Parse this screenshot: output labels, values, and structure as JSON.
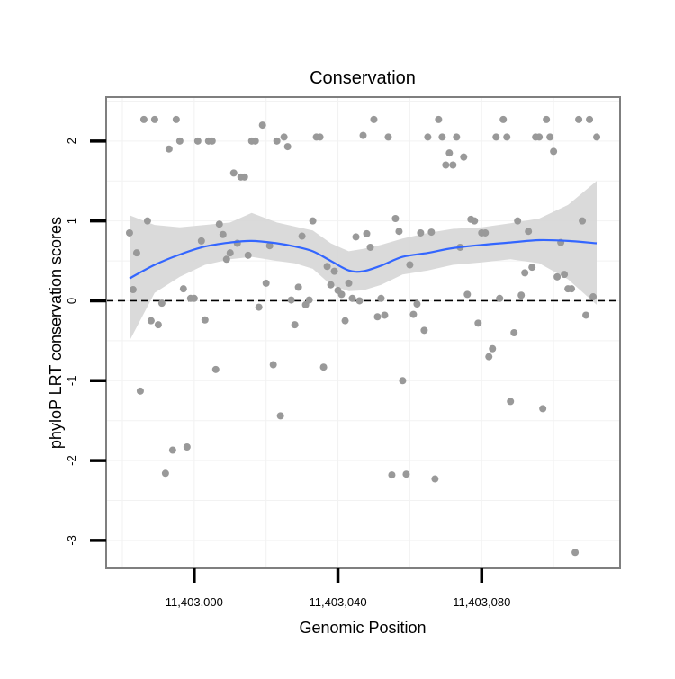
{
  "chart_data": {
    "type": "scatter",
    "title": "Conservation",
    "xlabel": "Genomic Position",
    "ylabel": "phyloP LRT conservation scores",
    "xlim": [
      11402975.5,
      11403118.5
    ],
    "ylim": [
      -3.35,
      2.55
    ],
    "x_ticks": [
      {
        "value": 11403000,
        "label": "11,403,000"
      },
      {
        "value": 11403040,
        "label": "11,403,040"
      },
      {
        "value": 11403080,
        "label": "11,403,080"
      }
    ],
    "y_ticks": [
      {
        "value": 2,
        "label": "2"
      },
      {
        "value": 1,
        "label": "1"
      },
      {
        "value": 0,
        "label": "0"
      },
      {
        "value": -1,
        "label": "-1"
      },
      {
        "value": -2,
        "label": "-2"
      },
      {
        "value": -3,
        "label": "-3"
      }
    ],
    "grid": true,
    "reference_line": {
      "y": 0,
      "style": "dashed",
      "color": "#000000"
    },
    "point_color": "#999999",
    "smooth_color": "#3366ff",
    "ribbon_color": "#d6d6d6",
    "points": [
      {
        "x": 11402982,
        "y": 0.85
      },
      {
        "x": 11402983,
        "y": 0.14
      },
      {
        "x": 11402984,
        "y": 0.6
      },
      {
        "x": 11402985,
        "y": -1.13
      },
      {
        "x": 11402986,
        "y": 2.27
      },
      {
        "x": 11402987,
        "y": 1.0
      },
      {
        "x": 11402988,
        "y": -0.25
      },
      {
        "x": 11402989,
        "y": 2.27
      },
      {
        "x": 11402990,
        "y": -0.3
      },
      {
        "x": 11402991,
        "y": -0.03
      },
      {
        "x": 11402992,
        "y": -2.16
      },
      {
        "x": 11402993,
        "y": 1.9
      },
      {
        "x": 11402994,
        "y": -1.87
      },
      {
        "x": 11402995,
        "y": 2.27
      },
      {
        "x": 11402996,
        "y": 2.0
      },
      {
        "x": 11402997,
        "y": 0.15
      },
      {
        "x": 11402998,
        "y": -1.83
      },
      {
        "x": 11402999,
        "y": 0.03
      },
      {
        "x": 11403000,
        "y": 0.03
      },
      {
        "x": 11403001,
        "y": 2.0
      },
      {
        "x": 11403002,
        "y": 0.75
      },
      {
        "x": 11403003,
        "y": -0.24
      },
      {
        "x": 11403004,
        "y": 2.0
      },
      {
        "x": 11403005,
        "y": 2.0
      },
      {
        "x": 11403006,
        "y": -0.86
      },
      {
        "x": 11403007,
        "y": 0.96
      },
      {
        "x": 11403008,
        "y": 0.83
      },
      {
        "x": 11403009,
        "y": 0.52
      },
      {
        "x": 11403010,
        "y": 0.6
      },
      {
        "x": 11403011,
        "y": 1.6
      },
      {
        "x": 11403012,
        "y": 0.72
      },
      {
        "x": 11403013,
        "y": 1.55
      },
      {
        "x": 11403014,
        "y": 1.55
      },
      {
        "x": 11403015,
        "y": 0.57
      },
      {
        "x": 11403016,
        "y": 2.0
      },
      {
        "x": 11403017,
        "y": 2.0
      },
      {
        "x": 11403018,
        "y": -0.08
      },
      {
        "x": 11403019,
        "y": 2.2
      },
      {
        "x": 11403020,
        "y": 0.22
      },
      {
        "x": 11403021,
        "y": 0.69
      },
      {
        "x": 11403022,
        "y": -0.8
      },
      {
        "x": 11403023,
        "y": 2.0
      },
      {
        "x": 11403024,
        "y": -1.44
      },
      {
        "x": 11403025,
        "y": 2.05
      },
      {
        "x": 11403026,
        "y": 1.93
      },
      {
        "x": 11403027,
        "y": 0.01
      },
      {
        "x": 11403028,
        "y": -0.3
      },
      {
        "x": 11403029,
        "y": 0.17
      },
      {
        "x": 11403030,
        "y": 0.81
      },
      {
        "x": 11403031,
        "y": -0.05
      },
      {
        "x": 11403032,
        "y": 0.01
      },
      {
        "x": 11403033,
        "y": 1.0
      },
      {
        "x": 11403034,
        "y": 2.05
      },
      {
        "x": 11403035,
        "y": 2.05
      },
      {
        "x": 11403036,
        "y": -0.83
      },
      {
        "x": 11403037,
        "y": 0.43
      },
      {
        "x": 11403038,
        "y": 0.2
      },
      {
        "x": 11403039,
        "y": 0.37
      },
      {
        "x": 11403040,
        "y": 0.13
      },
      {
        "x": 11403041,
        "y": 0.08
      },
      {
        "x": 11403042,
        "y": -0.25
      },
      {
        "x": 11403043,
        "y": 0.22
      },
      {
        "x": 11403044,
        "y": 0.03
      },
      {
        "x": 11403045,
        "y": 0.8
      },
      {
        "x": 11403046,
        "y": 0.0
      },
      {
        "x": 11403047,
        "y": 2.07
      },
      {
        "x": 11403048,
        "y": 0.84
      },
      {
        "x": 11403049,
        "y": 0.67
      },
      {
        "x": 11403050,
        "y": 2.27
      },
      {
        "x": 11403051,
        "y": -0.2
      },
      {
        "x": 11403052,
        "y": 0.03
      },
      {
        "x": 11403053,
        "y": -0.18
      },
      {
        "x": 11403054,
        "y": 2.05
      },
      {
        "x": 11403055,
        "y": -2.18
      },
      {
        "x": 11403056,
        "y": 1.03
      },
      {
        "x": 11403057,
        "y": 0.87
      },
      {
        "x": 11403058,
        "y": -1.0
      },
      {
        "x": 11403059,
        "y": -2.17
      },
      {
        "x": 11403060,
        "y": 0.45
      },
      {
        "x": 11403061,
        "y": -0.17
      },
      {
        "x": 11403062,
        "y": -0.04
      },
      {
        "x": 11403063,
        "y": 0.85
      },
      {
        "x": 11403064,
        "y": -0.37
      },
      {
        "x": 11403065,
        "y": 2.05
      },
      {
        "x": 11403066,
        "y": 0.86
      },
      {
        "x": 11403067,
        "y": -2.23
      },
      {
        "x": 11403068,
        "y": 2.27
      },
      {
        "x": 11403069,
        "y": 2.05
      },
      {
        "x": 11403070,
        "y": 1.7
      },
      {
        "x": 11403071,
        "y": 1.85
      },
      {
        "x": 11403072,
        "y": 1.7
      },
      {
        "x": 11403073,
        "y": 2.05
      },
      {
        "x": 11403074,
        "y": 0.67
      },
      {
        "x": 11403075,
        "y": 1.8
      },
      {
        "x": 11403076,
        "y": 0.08
      },
      {
        "x": 11403077,
        "y": 1.02
      },
      {
        "x": 11403078,
        "y": 1.0
      },
      {
        "x": 11403079,
        "y": -0.28
      },
      {
        "x": 11403080,
        "y": 0.85
      },
      {
        "x": 11403081,
        "y": 0.85
      },
      {
        "x": 11403082,
        "y": -0.7
      },
      {
        "x": 11403083,
        "y": -0.6
      },
      {
        "x": 11403084,
        "y": 2.05
      },
      {
        "x": 11403085,
        "y": 0.03
      },
      {
        "x": 11403086,
        "y": 2.27
      },
      {
        "x": 11403087,
        "y": 2.05
      },
      {
        "x": 11403088,
        "y": -1.26
      },
      {
        "x": 11403089,
        "y": -0.4
      },
      {
        "x": 11403090,
        "y": 1.0
      },
      {
        "x": 11403091,
        "y": 0.07
      },
      {
        "x": 11403092,
        "y": 0.35
      },
      {
        "x": 11403093,
        "y": 0.87
      },
      {
        "x": 11403094,
        "y": 0.42
      },
      {
        "x": 11403095,
        "y": 2.05
      },
      {
        "x": 11403096,
        "y": 2.05
      },
      {
        "x": 11403097,
        "y": -1.35
      },
      {
        "x": 11403098,
        "y": 2.27
      },
      {
        "x": 11403099,
        "y": 2.05
      },
      {
        "x": 11403100,
        "y": 1.87
      },
      {
        "x": 11403101,
        "y": 0.3
      },
      {
        "x": 11403102,
        "y": 0.73
      },
      {
        "x": 11403103,
        "y": 0.33
      },
      {
        "x": 11403104,
        "y": 0.15
      },
      {
        "x": 11403105,
        "y": 0.15
      },
      {
        "x": 11403106,
        "y": -3.15
      },
      {
        "x": 11403107,
        "y": 2.27
      },
      {
        "x": 11403108,
        "y": 1.0
      },
      {
        "x": 11403109,
        "y": -0.18
      },
      {
        "x": 11403110,
        "y": 2.27
      },
      {
        "x": 11403111,
        "y": 0.05
      },
      {
        "x": 11403112,
        "y": 2.05
      }
    ],
    "smooth": [
      {
        "x": 11402982,
        "y": 0.28,
        "lo": -0.5,
        "hi": 1.07
      },
      {
        "x": 11402989,
        "y": 0.45,
        "lo": 0.1,
        "hi": 0.95
      },
      {
        "x": 11402996,
        "y": 0.58,
        "lo": 0.3,
        "hi": 0.92
      },
      {
        "x": 11403003,
        "y": 0.68,
        "lo": 0.45,
        "hi": 0.95
      },
      {
        "x": 11403010,
        "y": 0.73,
        "lo": 0.52,
        "hi": 0.98
      },
      {
        "x": 11403016,
        "y": 0.75,
        "lo": 0.55,
        "hi": 1.1
      },
      {
        "x": 11403023,
        "y": 0.72,
        "lo": 0.5,
        "hi": 0.98
      },
      {
        "x": 11403028,
        "y": 0.68,
        "lo": 0.47,
        "hi": 0.93
      },
      {
        "x": 11403033,
        "y": 0.62,
        "lo": 0.4,
        "hi": 0.88
      },
      {
        "x": 11403038,
        "y": 0.5,
        "lo": 0.2,
        "hi": 0.72
      },
      {
        "x": 11403043,
        "y": 0.38,
        "lo": 0.12,
        "hi": 0.62
      },
      {
        "x": 11403047,
        "y": 0.37,
        "lo": 0.13,
        "hi": 0.65
      },
      {
        "x": 11403052,
        "y": 0.44,
        "lo": 0.2,
        "hi": 0.7
      },
      {
        "x": 11403058,
        "y": 0.55,
        "lo": 0.33,
        "hi": 0.78
      },
      {
        "x": 11403065,
        "y": 0.6,
        "lo": 0.38,
        "hi": 0.85
      },
      {
        "x": 11403072,
        "y": 0.66,
        "lo": 0.45,
        "hi": 0.9
      },
      {
        "x": 11403080,
        "y": 0.7,
        "lo": 0.48,
        "hi": 0.92
      },
      {
        "x": 11403088,
        "y": 0.73,
        "lo": 0.52,
        "hi": 0.97
      },
      {
        "x": 11403096,
        "y": 0.76,
        "lo": 0.47,
        "hi": 1.03
      },
      {
        "x": 11403104,
        "y": 0.75,
        "lo": 0.27,
        "hi": 1.2
      },
      {
        "x": 11403112,
        "y": 0.72,
        "lo": -0.05,
        "hi": 1.5
      }
    ]
  }
}
